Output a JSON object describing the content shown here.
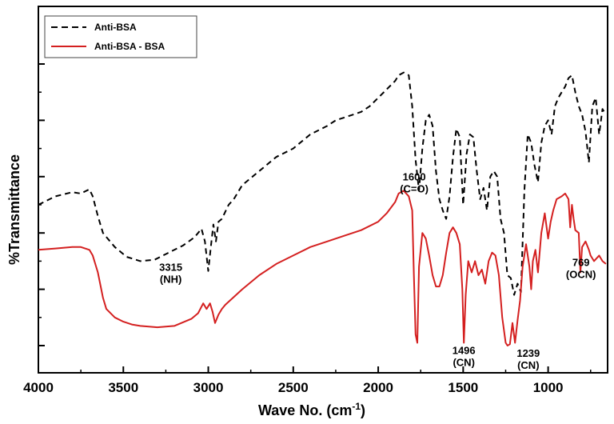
{
  "chart_data": {
    "type": "line",
    "title": "",
    "xlabel": "Wave No. (cm",
    "xlabel_sup": "-1",
    "xlabel_close": ")",
    "ylabel": "%Transmittance",
    "xlim": [
      4000,
      650
    ],
    "x_reversed": true,
    "ylim": [
      0,
      100
    ],
    "x_ticks": [
      4000,
      3500,
      3000,
      2500,
      2000,
      1500,
      1000
    ],
    "x_tick_labels": [
      "4000",
      "3500",
      "3000",
      "2500",
      "2000",
      "1500",
      "1000"
    ],
    "y_ticks_unlabeled": true,
    "grid": false,
    "legend_position": "top-left",
    "colors": {
      "anti_bsa": "#000000",
      "anti_bsa_bsa": "#d42020"
    },
    "series": [
      {
        "name": "Anti-BSA",
        "style": "dashed",
        "x": [
          4000,
          3900,
          3800,
          3750,
          3700,
          3680,
          3650,
          3620,
          3550,
          3480,
          3400,
          3315,
          3250,
          3150,
          3080,
          3040,
          3020,
          3000,
          2985,
          2970,
          2955,
          2940,
          2920,
          2880,
          2850,
          2800,
          2700,
          2600,
          2500,
          2400,
          2300,
          2250,
          2200,
          2150,
          2100,
          2050,
          2000,
          1950,
          1900,
          1880,
          1850,
          1820,
          1800,
          1780,
          1760,
          1740,
          1720,
          1700,
          1680,
          1660,
          1640,
          1620,
          1600,
          1580,
          1560,
          1540,
          1520,
          1500,
          1480,
          1460,
          1440,
          1420,
          1400,
          1380,
          1360,
          1340,
          1320,
          1300,
          1280,
          1260,
          1240,
          1220,
          1200,
          1180,
          1160,
          1140,
          1120,
          1100,
          1080,
          1060,
          1040,
          1020,
          1000,
          980,
          960,
          940,
          920,
          900,
          880,
          860,
          840,
          820,
          800,
          780,
          760,
          740,
          720,
          700,
          680,
          660
        ],
        "y": [
          50,
          53,
          54.5,
          54,
          55.5,
          53,
          46,
          40,
          35,
          31.5,
          30,
          30.5,
          32.5,
          35.5,
          38.5,
          41.5,
          37,
          26.5,
          35,
          43,
          37,
          44,
          45,
          50,
          52,
          57,
          62,
          67,
          70,
          75,
          78,
          80,
          81,
          82,
          83,
          85,
          88,
          91,
          94,
          96,
          97,
          96,
          85,
          66,
          55,
          70,
          80,
          82,
          78,
          62,
          52,
          48,
          45,
          53,
          67,
          77,
          74,
          50,
          68,
          75,
          74,
          62,
          52,
          56,
          48,
          60,
          62,
          60,
          45,
          40,
          25,
          24,
          18,
          22,
          19,
          55,
          75,
          72,
          64,
          58,
          72,
          78,
          80,
          75,
          85,
          88,
          90,
          92,
          95,
          96,
          90,
          85,
          82,
          76,
          65,
          85,
          88,
          75,
          84,
          82
        ]
      },
      {
        "name": "Anti-BSA - BSA",
        "style": "solid",
        "x": [
          4000,
          3900,
          3800,
          3750,
          3700,
          3680,
          3650,
          3620,
          3600,
          3550,
          3500,
          3450,
          3400,
          3300,
          3200,
          3100,
          3060,
          3030,
          3010,
          2990,
          2975,
          2960,
          2940,
          2920,
          2900,
          2800,
          2700,
          2600,
          2500,
          2400,
          2300,
          2200,
          2100,
          2000,
          1950,
          1900,
          1880,
          1850,
          1820,
          1800,
          1790,
          1780,
          1770,
          1760,
          1740,
          1720,
          1700,
          1680,
          1660,
          1640,
          1620,
          1600,
          1580,
          1560,
          1540,
          1520,
          1505,
          1496,
          1485,
          1470,
          1450,
          1430,
          1410,
          1390,
          1370,
          1350,
          1330,
          1310,
          1290,
          1270,
          1250,
          1239,
          1225,
          1210,
          1195,
          1180,
          1165,
          1150,
          1130,
          1110,
          1100,
          1090,
          1075,
          1060,
          1040,
          1020,
          1000,
          985,
          970,
          950,
          920,
          900,
          880,
          870,
          860,
          850,
          840,
          820,
          810,
          800,
          780,
          760,
          750,
          730,
          700,
          680,
          660
        ],
        "y": [
          34,
          34.5,
          35,
          35,
          34,
          32,
          26,
          17,
          13,
          10,
          8.5,
          7.5,
          7,
          6.5,
          7,
          9.5,
          11.5,
          15,
          13,
          15,
          12,
          8,
          11,
          13,
          14.5,
          20,
          25,
          29,
          32,
          35,
          37,
          39,
          41,
          44,
          47,
          51,
          54,
          55,
          53,
          48,
          25,
          4,
          1,
          28,
          40,
          38,
          32,
          25,
          21,
          21,
          25,
          33,
          40,
          42,
          40,
          36,
          20,
          1,
          18,
          30,
          26,
          30,
          25,
          27,
          22,
          30,
          33,
          32,
          25,
          10,
          1,
          0,
          0.5,
          8,
          1,
          9,
          16,
          28,
          36,
          28,
          20,
          30,
          34,
          26,
          40,
          47,
          38,
          44,
          48,
          52,
          53,
          54,
          52,
          42,
          50,
          45,
          41,
          40,
          26,
          35,
          37,
          34,
          32,
          30,
          32,
          30,
          29
        ]
      }
    ],
    "annotations": [
      {
        "x": 3315,
        "y": 30.5,
        "line1": "3315",
        "line2": "(NH)"
      },
      {
        "x": 1600,
        "y": 45,
        "line1": "1600",
        "line2": "(C=O)"
      },
      {
        "x": 1496,
        "y": 1,
        "line1": "1496",
        "line2": "(CN)"
      },
      {
        "x": 1239,
        "y": 0,
        "line1": "1239",
        "line2": "(CN)"
      },
      {
        "x": 769,
        "y": 34,
        "line1": "769",
        "line2": "(OCN)"
      }
    ]
  }
}
